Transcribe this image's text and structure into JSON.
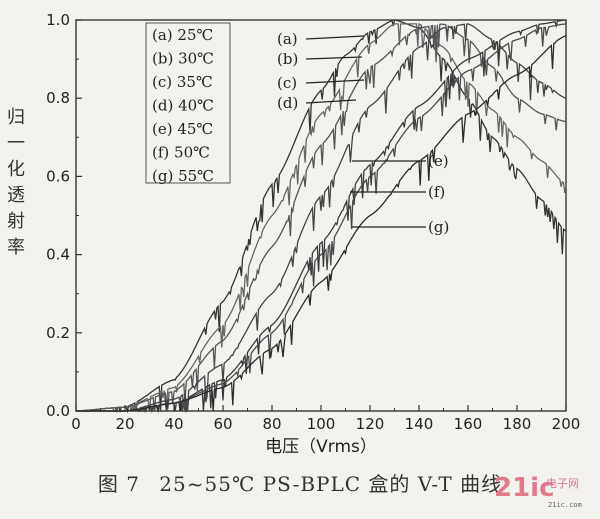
{
  "chart_data": {
    "type": "line",
    "xlabel": "电压（Vrms）",
    "ylabel": "归一化透射率",
    "xlim": [
      0,
      200
    ],
    "ylim": [
      0,
      1.0
    ],
    "x_ticks": [
      "0",
      "20",
      "40",
      "60",
      "80",
      "100",
      "120",
      "140",
      "160",
      "180",
      "200"
    ],
    "y_ticks": [
      "0.0",
      "0.2",
      "0.4",
      "0.6",
      "0.8",
      "1.0"
    ],
    "grid": false,
    "legend_position": "top-left",
    "series": [
      {
        "name": "(a) 25℃",
        "label": "(a)",
        "x": [
          0,
          20,
          40,
          60,
          80,
          100,
          110,
          120,
          130,
          140,
          150,
          160,
          170,
          180,
          190,
          200
        ],
        "y": [
          0,
          0.01,
          0.08,
          0.28,
          0.58,
          0.82,
          0.91,
          0.97,
          1.0,
          0.98,
          0.9,
          0.8,
          0.7,
          0.62,
          0.54,
          0.46
        ]
      },
      {
        "name": "(b) 30℃",
        "label": "(b)",
        "x": [
          0,
          20,
          40,
          60,
          80,
          100,
          120,
          130,
          140,
          150,
          160,
          170,
          180,
          190,
          200
        ],
        "y": [
          0,
          0.01,
          0.06,
          0.22,
          0.5,
          0.76,
          0.94,
          0.99,
          0.99,
          0.93,
          0.84,
          0.77,
          0.7,
          0.64,
          0.58
        ]
      },
      {
        "name": "(c) 35℃",
        "label": "(c)",
        "x": [
          0,
          20,
          40,
          60,
          80,
          100,
          120,
          140,
          150,
          160,
          170,
          180,
          190,
          200
        ],
        "y": [
          0,
          0.01,
          0.05,
          0.18,
          0.42,
          0.68,
          0.88,
          0.98,
          0.99,
          0.95,
          0.88,
          0.8,
          0.76,
          0.74
        ]
      },
      {
        "name": "(d) 40℃",
        "label": "(d)",
        "x": [
          0,
          20,
          40,
          60,
          80,
          100,
          120,
          140,
          150,
          160,
          170,
          180,
          190,
          200
        ],
        "y": [
          0,
          0.0,
          0.03,
          0.12,
          0.3,
          0.55,
          0.78,
          0.93,
          0.98,
          0.99,
          0.95,
          0.89,
          0.84,
          0.8
        ]
      },
      {
        "name": "(e) 45℃",
        "label": "(e)",
        "x": [
          0,
          20,
          40,
          60,
          80,
          100,
          120,
          140,
          160,
          180,
          190,
          200
        ],
        "y": [
          0,
          0.0,
          0.02,
          0.08,
          0.22,
          0.43,
          0.63,
          0.78,
          0.9,
          0.97,
          0.99,
          1.0
        ]
      },
      {
        "name": "(f) 50℃",
        "label": "(f)",
        "x": [
          0,
          20,
          40,
          60,
          80,
          100,
          120,
          140,
          160,
          180,
          190,
          200
        ],
        "y": [
          0,
          0.0,
          0.02,
          0.07,
          0.2,
          0.4,
          0.6,
          0.75,
          0.87,
          0.95,
          0.98,
          0.99
        ]
      },
      {
        "name": "(g) 55℃",
        "label": "(g)",
        "x": [
          0,
          20,
          40,
          60,
          80,
          100,
          120,
          140,
          160,
          180,
          200
        ],
        "y": [
          0,
          0.0,
          0.02,
          0.06,
          0.16,
          0.33,
          0.5,
          0.64,
          0.76,
          0.86,
          0.96
        ]
      }
    ]
  },
  "caption": {
    "fig": "图 7",
    "text": "25~55℃ PS-BPLC 盒的 V-T 曲线"
  },
  "watermark": {
    "main": "21ic",
    "sub": "电子网",
    "url": "21ic.com"
  }
}
